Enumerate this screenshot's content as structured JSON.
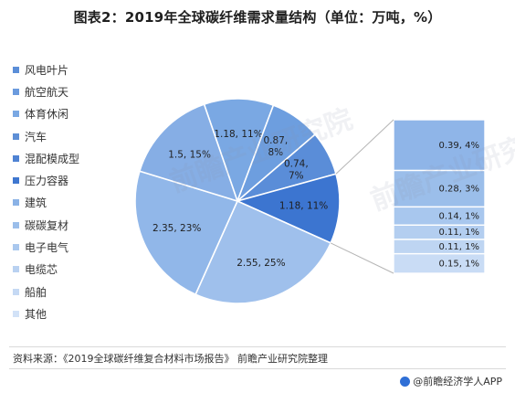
{
  "header": {
    "title": "图表2：2019年全球碳纤维需求量结构（单位：万吨，%）"
  },
  "legend": {
    "items": [
      {
        "label": "风电叶片",
        "color": "#5b8ed8"
      },
      {
        "label": "航空航天",
        "color": "#6b9bde"
      },
      {
        "label": "体育休闲",
        "color": "#7aa8e3"
      },
      {
        "label": "汽车",
        "color": "#5e8fd6"
      },
      {
        "label": "混配模成型",
        "color": "#4f83d3"
      },
      {
        "label": "压力容器",
        "color": "#3f77d0"
      },
      {
        "label": "建筑",
        "color": "#8ab2e6"
      },
      {
        "label": "碳碳复材",
        "color": "#9bbeea"
      },
      {
        "label": "电子电气",
        "color": "#aac8ee"
      },
      {
        "label": "电缆芯",
        "color": "#b9d1f1"
      },
      {
        "label": "船舶",
        "color": "#c5d9f4"
      },
      {
        "label": "其他",
        "color": "#d2e2f7"
      }
    ]
  },
  "chart_data": {
    "type": "pie",
    "pie_slices": [
      {
        "label": "1.18, 11%",
        "value": 1.18,
        "percent": 11,
        "color": "#7aa8e3"
      },
      {
        "label": "0.87, 8%",
        "value": 0.87,
        "percent": 8,
        "color": "#6d9edf"
      },
      {
        "label": "0.74, 7%",
        "value": 0.74,
        "percent": 7,
        "color": "#5a8dd8"
      },
      {
        "label": "1.18, 11%",
        "value": 1.18,
        "percent": 11,
        "color": "#3c75d0"
      },
      {
        "label": "2.55, 25%",
        "value": 2.55,
        "percent": 25,
        "color": "#9fc0ec"
      },
      {
        "label": "2.35, 23%",
        "value": 2.35,
        "percent": 23,
        "color": "#91b7e9"
      },
      {
        "label": "1.5, 15%",
        "value": 1.5,
        "percent": 15,
        "color": "#86aee5"
      }
    ],
    "breakdown_bar": [
      {
        "label": "0.39, 4%",
        "value": 0.39,
        "percent": 4,
        "color": "#8fb5e8"
      },
      {
        "label": "0.28, 3%",
        "value": 0.28,
        "percent": 3,
        "color": "#9bbeea"
      },
      {
        "label": "0.14, 1%",
        "value": 0.14,
        "percent": 1,
        "color": "#a8c7ee"
      },
      {
        "label": "0.11, 1%",
        "value": 0.11,
        "percent": 1,
        "color": "#b3cef0"
      },
      {
        "label": "0.11, 1%",
        "value": 0.11,
        "percent": 1,
        "color": "#bed5f2"
      },
      {
        "label": "0.15, 1%",
        "value": 0.15,
        "percent": 1,
        "color": "#c9dcf5"
      }
    ],
    "legend_position": "left",
    "grid": false
  },
  "footer": {
    "source": "资料来源：《2019全球碳纤维复合材料市场报告》 前瞻产业研究院整理",
    "brand": "@前瞻经济学人APP"
  },
  "watermark": {
    "text": "前瞻产业研究院"
  }
}
